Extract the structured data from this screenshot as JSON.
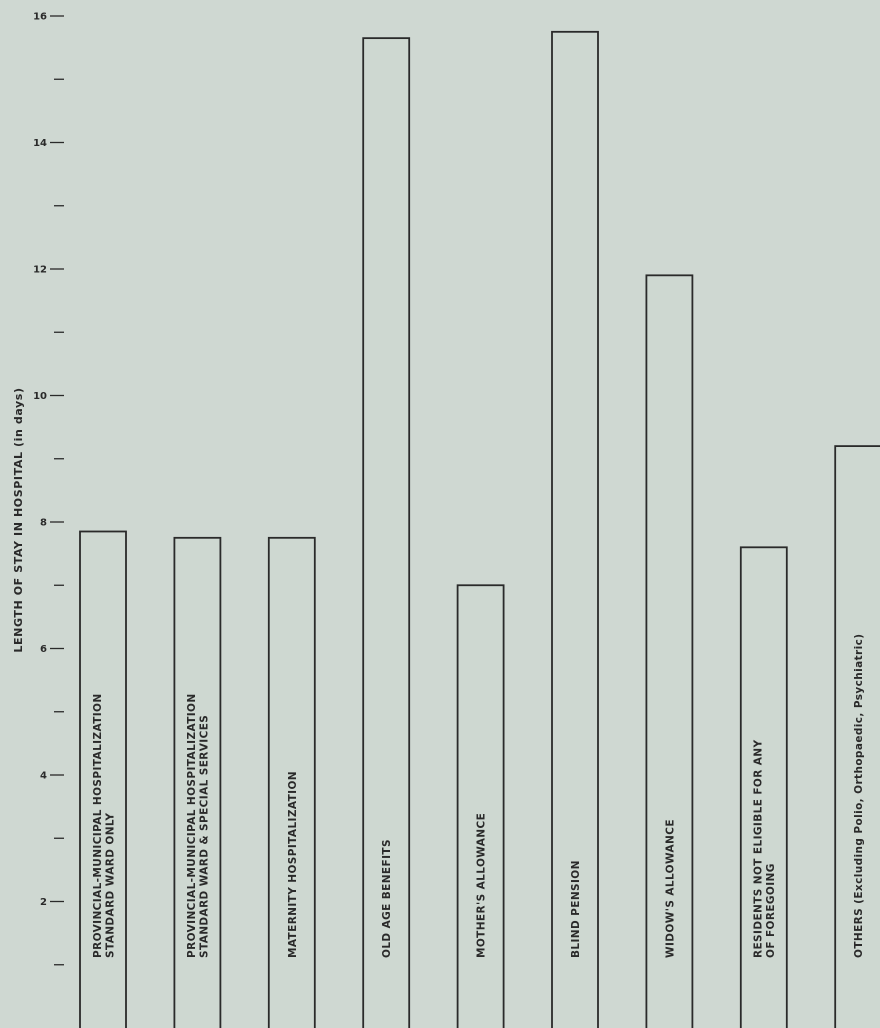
{
  "chart_data": {
    "type": "bar",
    "title": "",
    "xlabel": "",
    "ylabel": "LENGTH OF STAY IN HOSPITAL (in days)",
    "ylim": [
      0,
      16
    ],
    "yticks_labeled": [
      {
        "value": 2,
        "label": "2"
      },
      {
        "value": 4,
        "label": "4"
      },
      {
        "value": 6,
        "label": "6"
      },
      {
        "value": 8,
        "label": "8"
      },
      {
        "value": 10,
        "label": "10"
      },
      {
        "value": 12,
        "label": "12"
      },
      {
        "value": 14,
        "label": "14"
      },
      {
        "value": 16,
        "label": "16"
      }
    ],
    "yticks_minor": [
      1,
      3,
      5,
      7,
      9,
      11,
      13,
      15
    ],
    "grid": false,
    "legend": "none",
    "categories": [
      [
        "PROVINCIAL-MUNICIPAL HOSPITALIZATION",
        "STANDARD WARD ONLY"
      ],
      [
        "PROVINCIAL-MUNICIPAL HOSPITALIZATION",
        "STANDARD WARD & SPECIAL SERVICES"
      ],
      [
        "MATERNITY HOSPITALIZATION"
      ],
      [
        "OLD AGE BENEFITS"
      ],
      [
        "MOTHER'S ALLOWANCE"
      ],
      [
        "BLIND PENSION"
      ],
      [
        "WIDOW'S ALLOWANCE"
      ],
      [
        "RESIDENTS NOT ELIGIBLE FOR ANY",
        "OF FOREGOING"
      ],
      [
        "OTHERS (Excluding Polio, Orthopaedic, Psychiatric)"
      ]
    ],
    "values": [
      7.85,
      7.75,
      7.75,
      15.65,
      7.0,
      15.75,
      11.9,
      7.6,
      9.2
    ]
  }
}
